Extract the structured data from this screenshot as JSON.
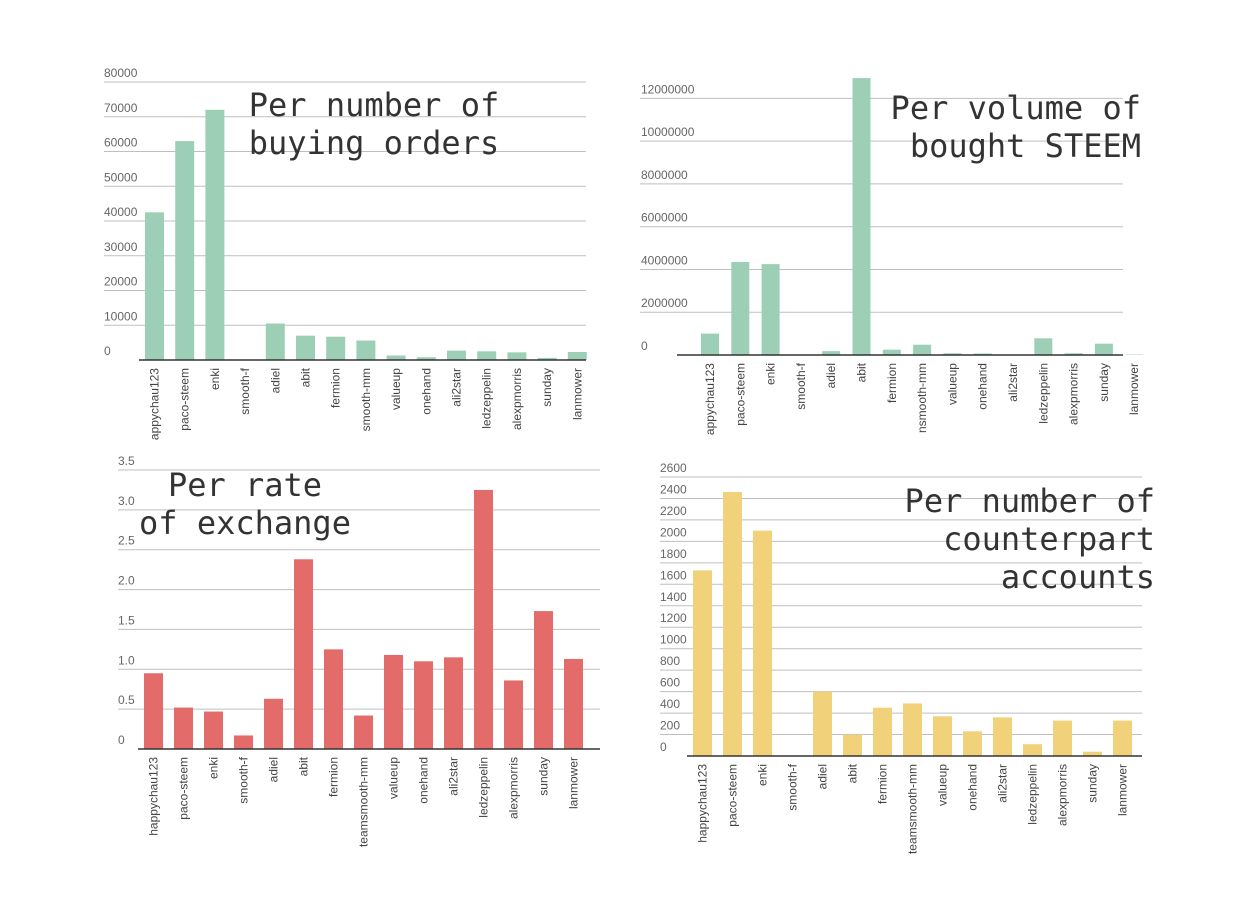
{
  "chart_data": [
    {
      "type": "bar",
      "title_lines": [
        "Per number of",
        "buying orders"
      ],
      "color": "#9dcfb6",
      "categories": [
        "appychau123",
        "paco-steem",
        "enki",
        "smooth-f",
        "adiel",
        "abit",
        "fermion",
        "smooth-mm",
        "valueup",
        "onehand",
        "ali2star",
        "ledzeppelin",
        "alexpmorris",
        "sunday",
        "lanmower"
      ],
      "values": [
        42500,
        63000,
        72000,
        0,
        10500,
        7000,
        6700,
        5600,
        1300,
        800,
        2700,
        2500,
        2200,
        600,
        2300
      ],
      "ylim": [
        0,
        80000
      ],
      "yticks": [
        0,
        10000,
        20000,
        30000,
        40000,
        50000,
        60000,
        70000,
        80000
      ],
      "ytick_labels": [
        "0",
        "10000",
        "20000",
        "30000",
        "40000",
        "50000",
        "60000",
        "70000",
        "80000"
      ],
      "grid": true
    },
    {
      "type": "bar",
      "title_lines": [
        "Per volume of",
        "bought STEEM"
      ],
      "color": "#9dcfb6",
      "categories": [
        "appychau123",
        "paco-steem",
        "enki",
        "smooth-f",
        "adiel",
        "abit",
        "fermion",
        "nsmooth-mm",
        "valueup",
        "onehand",
        "ali2star",
        "ledzeppelin",
        "alexpmorris",
        "sunday",
        "lanmower"
      ],
      "values": [
        1000000,
        4350000,
        4250000,
        0,
        180000,
        12950000,
        250000,
        480000,
        80000,
        70000,
        20000,
        780000,
        80000,
        530000,
        20000
      ],
      "ylim": [
        0,
        13000000
      ],
      "yticks": [
        0,
        2000000,
        4000000,
        6000000,
        8000000,
        10000000,
        12000000
      ],
      "ytick_labels": [
        "0",
        "2000000",
        "4000000",
        "6000000",
        "8000000",
        "10000000",
        "12000000"
      ],
      "grid": true
    },
    {
      "type": "bar",
      "title_lines": [
        "Per rate",
        "of exchange"
      ],
      "color": "#e36b69",
      "categories": [
        "happychau123",
        "paco-steem",
        "enki",
        "smooth-f",
        "adiel",
        "abit",
        "fermion",
        "teamsmooth-mm",
        "valueup",
        "onehand",
        "ali2star",
        "ledzeppelin",
        "alexpmorris",
        "sunday",
        "lanmower"
      ],
      "values": [
        0.95,
        0.52,
        0.47,
        0.17,
        0.63,
        2.38,
        1.25,
        0.42,
        1.18,
        1.1,
        1.15,
        3.25,
        0.86,
        1.73,
        1.13
      ],
      "ylim": [
        0,
        3.5
      ],
      "yticks": [
        0,
        0.5,
        1.0,
        1.5,
        2.0,
        2.5,
        3.0,
        3.5
      ],
      "ytick_labels": [
        "0",
        "0.5",
        "1.0",
        "1.5",
        "2.0",
        "2.5",
        "3.0",
        "3.5"
      ],
      "grid": true
    },
    {
      "type": "bar",
      "title_lines": [
        "Per number of",
        "counterpart",
        "accounts"
      ],
      "color": "#f1d17a",
      "categories": [
        "happychau123",
        "paco-steem",
        "enki",
        "smooth-f",
        "adiel",
        "abit",
        "fermion",
        "teamsmooth-mm",
        "valueup",
        "onehand",
        "ali2star",
        "ledzeppelin",
        "alexpmorris",
        "sunday",
        "lanmower"
      ],
      "values": [
        1730,
        2460,
        2100,
        0,
        600,
        200,
        450,
        490,
        370,
        230,
        360,
        110,
        330,
        40,
        330
      ],
      "ylim": [
        0,
        2600
      ],
      "yticks": [
        0,
        200,
        400,
        600,
        800,
        1000,
        1200,
        1400,
        1600,
        1800,
        2000,
        2200,
        2400,
        2600
      ],
      "ytick_labels": [
        "0",
        "200",
        "400",
        "600",
        "800",
        "1000",
        "1200",
        "1400",
        "1600",
        "1800",
        "2000",
        "2200",
        "2400",
        "2600"
      ],
      "grid": true
    }
  ]
}
